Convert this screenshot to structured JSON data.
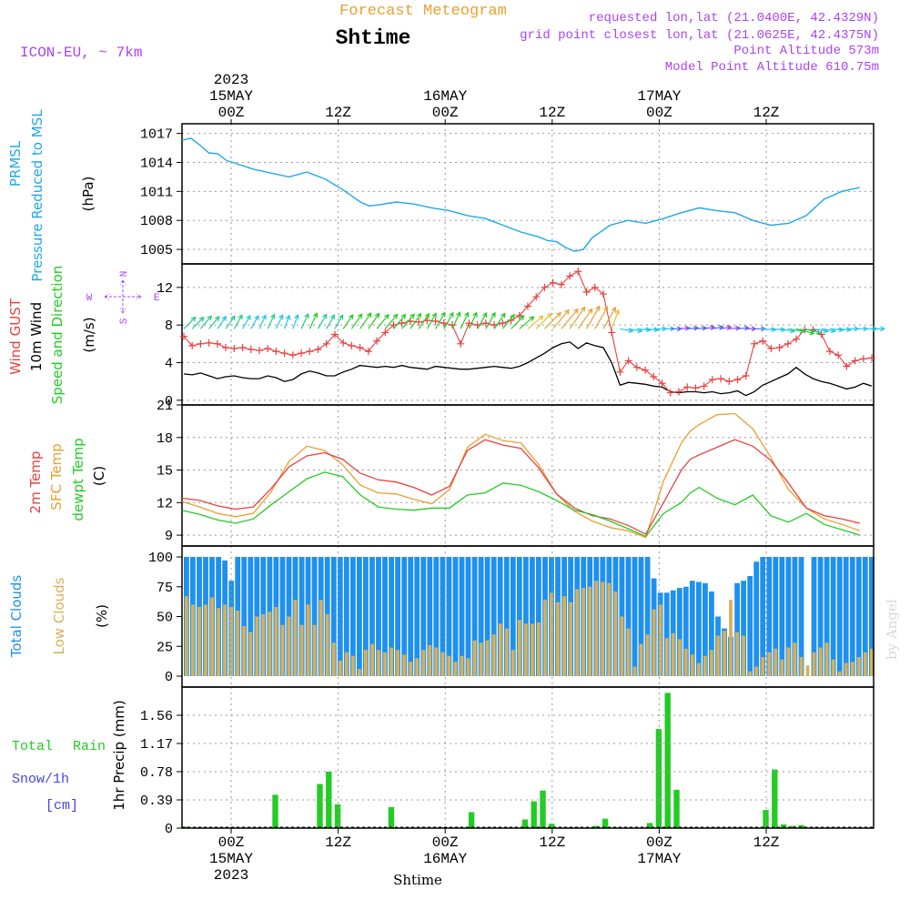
{
  "header": {
    "chart_title": "Forecast Meteogram",
    "location": "Shtime",
    "model": "ICON-EU, ~ 7km",
    "requested": "requested lon,lat (21.0400E, 42.4329N)",
    "grid_point": "grid point closest lon,lat (21.0625E, 42.4375N)",
    "point_alt": "Point Altitude 573m",
    "model_alt": "Model Point Altitude 610.75m",
    "watermark": "by Angel",
    "bottom_label": "Shtime"
  },
  "colors": {
    "pressure": "#1ea8e8",
    "gust": "#e84040",
    "wind": "#000000",
    "temp2m": "#e84040",
    "sfc": "#e8a030",
    "dew": "#22cc22",
    "total_cloud": "#1e90ee",
    "low_cloud": "#d8b058",
    "rain": "#22cc22",
    "snow": "#4444ee",
    "purple": "#aa44ee"
  },
  "time_axis": {
    "start": "2023-05-14T19:00Z",
    "hours": 65,
    "top_year": "2023",
    "ticks": [
      {
        "h": 5,
        "top": [
          "2023",
          "15MAY",
          "00Z"
        ],
        "bottom": [
          "00Z",
          "15MAY",
          "2023"
        ]
      },
      {
        "h": 17,
        "top": [
          "12Z"
        ],
        "bottom": [
          "12Z"
        ]
      },
      {
        "h": 29,
        "top": [
          "16MAY",
          "00Z"
        ],
        "bottom": [
          "00Z",
          "16MAY"
        ]
      },
      {
        "h": 41,
        "top": [
          "12Z"
        ],
        "bottom": [
          "12Z"
        ]
      },
      {
        "h": 53,
        "top": [
          "17MAY",
          "00Z"
        ],
        "bottom": [
          "00Z",
          "17MAY"
        ]
      },
      {
        "h": 65,
        "top": [
          "12Z"
        ],
        "bottom": [
          "12Z"
        ]
      }
    ]
  },
  "chart_data": [
    {
      "type": "line",
      "id": "pressure",
      "title": "PRMSL Pressure Reduced to MSL",
      "ylabel": "(hPa)",
      "side_labels": [
        "PRMSL",
        "Pressure Reduced to MSL"
      ],
      "ylim": [
        1003.5,
        1018
      ],
      "yticks": [
        1005,
        1008,
        1011,
        1014,
        1017
      ],
      "series": [
        {
          "name": "PRMSL",
          "x": [
            0,
            0.5,
            1,
            2,
            3,
            4,
            5,
            6,
            8,
            10,
            12,
            14,
            16,
            18,
            20,
            21,
            22,
            24,
            26,
            28,
            30,
            32,
            34,
            36,
            38,
            40,
            41,
            42,
            43,
            44,
            45,
            46,
            48,
            50,
            52,
            54,
            56,
            58,
            60,
            62,
            64,
            66,
            68,
            70,
            72,
            74,
            76
          ],
          "values": [
            1016.3,
            1016.4,
            1016.5,
            1015.8,
            1015.0,
            1014.9,
            1014.2,
            1013.9,
            1013.3,
            1012.9,
            1012.5,
            1013.0,
            1012.3,
            1011.2,
            1009.9,
            1009.5,
            1009.6,
            1009.9,
            1009.7,
            1009.3,
            1009.0,
            1008.5,
            1008.2,
            1007.5,
            1006.8,
            1006.3,
            1005.9,
            1005.8,
            1005.2,
            1004.8,
            1005.0,
            1006.2,
            1007.5,
            1008.0,
            1007.7,
            1008.2,
            1008.8,
            1009.3,
            1009.0,
            1008.8,
            1008.0,
            1007.5,
            1007.7,
            1008.5,
            1010.2,
            1011.0,
            1011.4
          ]
        }
      ]
    },
    {
      "type": "line",
      "id": "wind",
      "title": "Wind GUST, 10m Wind Speed and Direction",
      "ylabel": "(m/s)",
      "side_labels": [
        "Wind GUST",
        "10m Wind",
        "Speed and Direction"
      ],
      "compass": {
        "n": "N",
        "s": "S",
        "w": "W",
        "e": "E"
      },
      "ylim": [
        -0.5,
        14.5
      ],
      "yticks": [
        0,
        4,
        8,
        12
      ],
      "series": [
        {
          "name": "Gust",
          "values": [
            6.8,
            5.8,
            6.0,
            6.1,
            6.0,
            5.6,
            5.5,
            5.6,
            5.4,
            5.3,
            5.5,
            5.2,
            5.0,
            4.8,
            5.0,
            5.2,
            5.4,
            6.0,
            7.0,
            6.1,
            5.8,
            5.6,
            5.2,
            6.3,
            7.2,
            8.0,
            8.2,
            8.4,
            8.3,
            8.5,
            8.4,
            8.2,
            8.0,
            6.0,
            8.2,
            8.0,
            8.2,
            8.0,
            8.2,
            8.5,
            9.0,
            10.0,
            11.0,
            12.0,
            12.5,
            12.3,
            13.2,
            13.7,
            11.5,
            12.0,
            11.3,
            7.2,
            3.0,
            4.2,
            3.5,
            3.2,
            2.5,
            1.8,
            0.8,
            0.9,
            1.4,
            1.3,
            1.5,
            2.2,
            2.3,
            2.0,
            2.2,
            2.6,
            6.0,
            6.3,
            5.5,
            5.6,
            6.0,
            6.5,
            7.5,
            7.5,
            7.0,
            5.2,
            4.8,
            3.6,
            4.2,
            4.4,
            4.5
          ]
        },
        {
          "name": "10m Wind",
          "values": [
            2.8,
            2.7,
            2.9,
            2.6,
            2.3,
            2.5,
            2.6,
            2.4,
            2.3,
            2.3,
            2.6,
            2.4,
            2.0,
            2.2,
            2.8,
            3.1,
            2.9,
            2.6,
            2.6,
            3.0,
            3.3,
            3.7,
            3.6,
            3.5,
            3.6,
            3.5,
            3.7,
            3.5,
            3.4,
            3.3,
            3.6,
            3.5,
            3.4,
            3.3,
            3.3,
            3.4,
            3.5,
            3.6,
            3.5,
            3.4,
            3.6,
            4.0,
            4.5,
            5.0,
            5.6,
            6.0,
            6.2,
            5.5,
            6.1,
            5.8,
            5.6,
            4.0,
            1.6,
            1.9,
            1.8,
            1.7,
            1.5,
            1.4,
            0.9,
            0.8,
            0.9,
            0.9,
            0.8,
            0.9,
            0.7,
            0.8,
            1.0,
            0.5,
            0.9,
            1.6,
            2.0,
            2.4,
            2.8,
            3.5,
            2.8,
            2.3,
            2.0,
            1.8,
            1.5,
            1.2,
            1.4,
            1.8,
            1.5
          ]
        },
        {
          "name": "Direction (deg from)",
          "values": [
            225,
            225,
            220,
            220,
            215,
            215,
            210,
            210,
            210,
            205,
            205,
            205,
            200,
            200,
            205,
            205,
            210,
            210,
            210,
            215,
            215,
            215,
            215,
            220,
            220,
            220,
            220,
            215,
            215,
            210,
            210,
            210,
            205,
            205,
            205,
            210,
            210,
            215,
            220,
            225,
            230,
            230,
            225,
            225,
            220,
            220,
            215,
            215,
            210,
            210,
            210,
            200,
            280,
            280,
            275,
            275,
            270,
            270,
            270,
            265,
            265,
            265,
            260,
            260,
            260,
            265,
            265,
            270,
            270,
            275,
            275,
            280,
            280,
            285,
            285,
            280,
            280,
            275,
            275,
            270,
            270,
            270,
            270
          ]
        }
      ]
    },
    {
      "type": "line",
      "id": "temperature",
      "title": "2m Temp, SFC Temp, dewpt Temp",
      "ylabel": "(C)",
      "side_labels": [
        "2m Temp",
        "SFC Temp",
        "dewpt Temp"
      ],
      "ylim": [
        8,
        21
      ],
      "yticks": [
        9,
        12,
        15,
        18,
        21
      ],
      "series": [
        {
          "name": "2m Temp",
          "x": [
            0,
            2,
            4,
            6,
            8,
            10,
            12,
            14,
            16,
            18,
            20,
            22,
            24,
            26,
            28,
            30,
            32,
            34,
            36,
            38,
            40,
            42,
            44,
            46,
            48,
            50,
            52,
            54,
            56,
            57,
            58,
            60,
            62,
            64,
            66,
            68,
            70,
            72,
            74,
            76
          ],
          "values": [
            12.4,
            12.2,
            11.7,
            11.4,
            11.6,
            13.3,
            15.3,
            16.3,
            16.6,
            16.0,
            14.7,
            14.1,
            13.9,
            13.4,
            12.7,
            13.5,
            16.8,
            17.8,
            17.3,
            17.0,
            15.2,
            12.8,
            11.5,
            10.8,
            10.5,
            9.9,
            9.1,
            12.0,
            15.0,
            16.0,
            16.4,
            17.1,
            17.8,
            17.2,
            15.9,
            13.8,
            11.5,
            10.8,
            10.5,
            10.1
          ]
        },
        {
          "name": "SFC Temp",
          "x": [
            0,
            2,
            4,
            6,
            8,
            10,
            12,
            14,
            16,
            18,
            20,
            22,
            24,
            26,
            28,
            30,
            32,
            34,
            36,
            38,
            40,
            42,
            44,
            46,
            48,
            50,
            52,
            54,
            56,
            57,
            58,
            60,
            62,
            64,
            66,
            68,
            70,
            72,
            74,
            76
          ],
          "values": [
            12.1,
            11.6,
            11.0,
            10.7,
            11.0,
            13.0,
            15.8,
            17.2,
            16.8,
            15.5,
            13.6,
            12.9,
            12.8,
            12.3,
            11.9,
            13.2,
            17.1,
            18.3,
            17.7,
            17.5,
            15.5,
            12.8,
            11.2,
            10.3,
            9.7,
            9.4,
            8.8,
            14.0,
            17.5,
            18.6,
            19.2,
            20.1,
            20.2,
            18.8,
            16.2,
            13.2,
            11.5,
            10.5,
            10.0,
            9.4
          ]
        },
        {
          "name": "dewpt Temp",
          "x": [
            0,
            2,
            4,
            6,
            8,
            10,
            12,
            14,
            16,
            18,
            20,
            22,
            24,
            26,
            28,
            30,
            32,
            34,
            36,
            38,
            40,
            42,
            44,
            46,
            48,
            50,
            52,
            54,
            56,
            57,
            58,
            60,
            62,
            64,
            66,
            68,
            70,
            72,
            74,
            76
          ],
          "values": [
            11.3,
            10.9,
            10.4,
            10.1,
            10.5,
            11.8,
            13.0,
            14.2,
            14.8,
            14.4,
            12.7,
            11.6,
            11.4,
            11.3,
            11.5,
            11.5,
            12.7,
            12.9,
            13.8,
            13.6,
            13.0,
            12.2,
            11.3,
            10.9,
            10.3,
            9.6,
            8.9,
            11.0,
            12.0,
            12.9,
            13.4,
            12.4,
            11.8,
            12.7,
            10.8,
            10.2,
            11.0,
            10.0,
            9.5,
            9.0
          ]
        }
      ]
    },
    {
      "type": "bar",
      "id": "clouds",
      "title": "Total Clouds, Low Clouds",
      "ylabel": "(%)",
      "side_labels": [
        "Total Clouds",
        "Low Clouds"
      ],
      "ylim": [
        0,
        100
      ],
      "yticks": [
        0,
        25,
        50,
        75,
        100
      ],
      "series": [
        {
          "name": "Total Clouds",
          "values": [
            100,
            100,
            100,
            100,
            100,
            100,
            97,
            80,
            100,
            100,
            100,
            100,
            100,
            100,
            100,
            100,
            100,
            100,
            100,
            100,
            100,
            100,
            100,
            100,
            100,
            100,
            100,
            100,
            100,
            100,
            100,
            100,
            100,
            100,
            100,
            100,
            100,
            100,
            100,
            100,
            100,
            100,
            100,
            100,
            100,
            100,
            100,
            100,
            100,
            100,
            100,
            100,
            100,
            100,
            100,
            100,
            100,
            100,
            100,
            100,
            100,
            100,
            100,
            100,
            100,
            100,
            100,
            100,
            100,
            100,
            100,
            100,
            100,
            82,
            70,
            70,
            72,
            74,
            75,
            80,
            79,
            78,
            71,
            50,
            40,
            33,
            78,
            80,
            84,
            96,
            100,
            100,
            100,
            100,
            100,
            100,
            100,
            0,
            100,
            100,
            100,
            100,
            100,
            100,
            100,
            100,
            100,
            100
          ]
        },
        {
          "name": "Low Clouds",
          "values": [
            67,
            60,
            58,
            60,
            66,
            57,
            60,
            58,
            55,
            42,
            37,
            50,
            52,
            54,
            58,
            43,
            50,
            64,
            43,
            60,
            43,
            64,
            52,
            28,
            13,
            20,
            17,
            6,
            22,
            27,
            22,
            20,
            24,
            22,
            18,
            12,
            15,
            22,
            26,
            24,
            20,
            17,
            12,
            17,
            15,
            30,
            28,
            30,
            35,
            44,
            40,
            22,
            47,
            44,
            44,
            45,
            64,
            70,
            62,
            67,
            62,
            73,
            74,
            75,
            80,
            79,
            78,
            71,
            50,
            40,
            8,
            27,
            35,
            56,
            60,
            32,
            36,
            31,
            23,
            18,
            11,
            17,
            22,
            34,
            38,
            64,
            37,
            34,
            4,
            8,
            16,
            20,
            23,
            14,
            24,
            28,
            16,
            9,
            20,
            24,
            28,
            14,
            4,
            11,
            12,
            16,
            20,
            23
          ]
        }
      ]
    },
    {
      "type": "bar",
      "id": "precip",
      "title": "Total Rain, Snow/1h [cm]",
      "ylabel": "1hr Precip (mm)",
      "side_labels": [
        "Total",
        "Rain",
        "Snow/1h",
        "[cm]"
      ],
      "ylim": [
        0,
        1.95
      ],
      "yticks": [
        0,
        0.39,
        0.78,
        1.17,
        1.56
      ],
      "bar_hours": [
        0,
        10,
        15,
        16,
        17,
        23,
        32,
        38,
        39,
        40,
        41,
        46,
        47,
        52,
        53,
        54,
        55,
        65,
        66,
        67,
        68,
        69
      ],
      "series": [
        {
          "name": "Total Rain",
          "values": [
            0.02,
            0.46,
            0.61,
            0.78,
            0.33,
            0.29,
            0.22,
            0.12,
            0.37,
            0.52,
            0.06,
            0.03,
            0.13,
            0.07,
            1.37,
            1.87,
            0.53,
            0.25,
            0.81,
            0.05,
            0.03,
            0.04
          ]
        }
      ]
    }
  ]
}
